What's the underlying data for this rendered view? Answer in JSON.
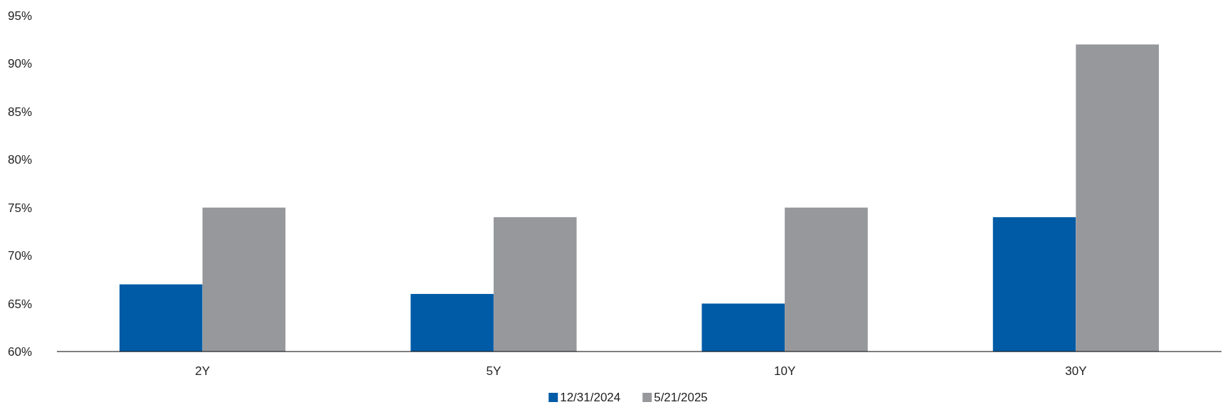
{
  "chart_data": {
    "type": "bar",
    "categories": [
      "2Y",
      "5Y",
      "10Y",
      "30Y"
    ],
    "series": [
      {
        "name": "12/31/2024",
        "color": "#005ba6",
        "values": [
          67,
          66,
          65,
          74
        ]
      },
      {
        "name": "5/21/2025",
        "color": "#97989c",
        "values": [
          75,
          74,
          75,
          92
        ]
      }
    ],
    "ylim": [
      60,
      95
    ],
    "yticks": [
      {
        "value": 60,
        "label": "60%"
      },
      {
        "value": 65,
        "label": "65%"
      },
      {
        "value": 70,
        "label": "70%"
      },
      {
        "value": 75,
        "label": "75%"
      },
      {
        "value": 80,
        "label": "80%"
      },
      {
        "value": 85,
        "label": "85%"
      },
      {
        "value": 90,
        "label": "90%"
      },
      {
        "value": 95,
        "label": "95%"
      }
    ],
    "grid": false,
    "legend": "bottom"
  }
}
